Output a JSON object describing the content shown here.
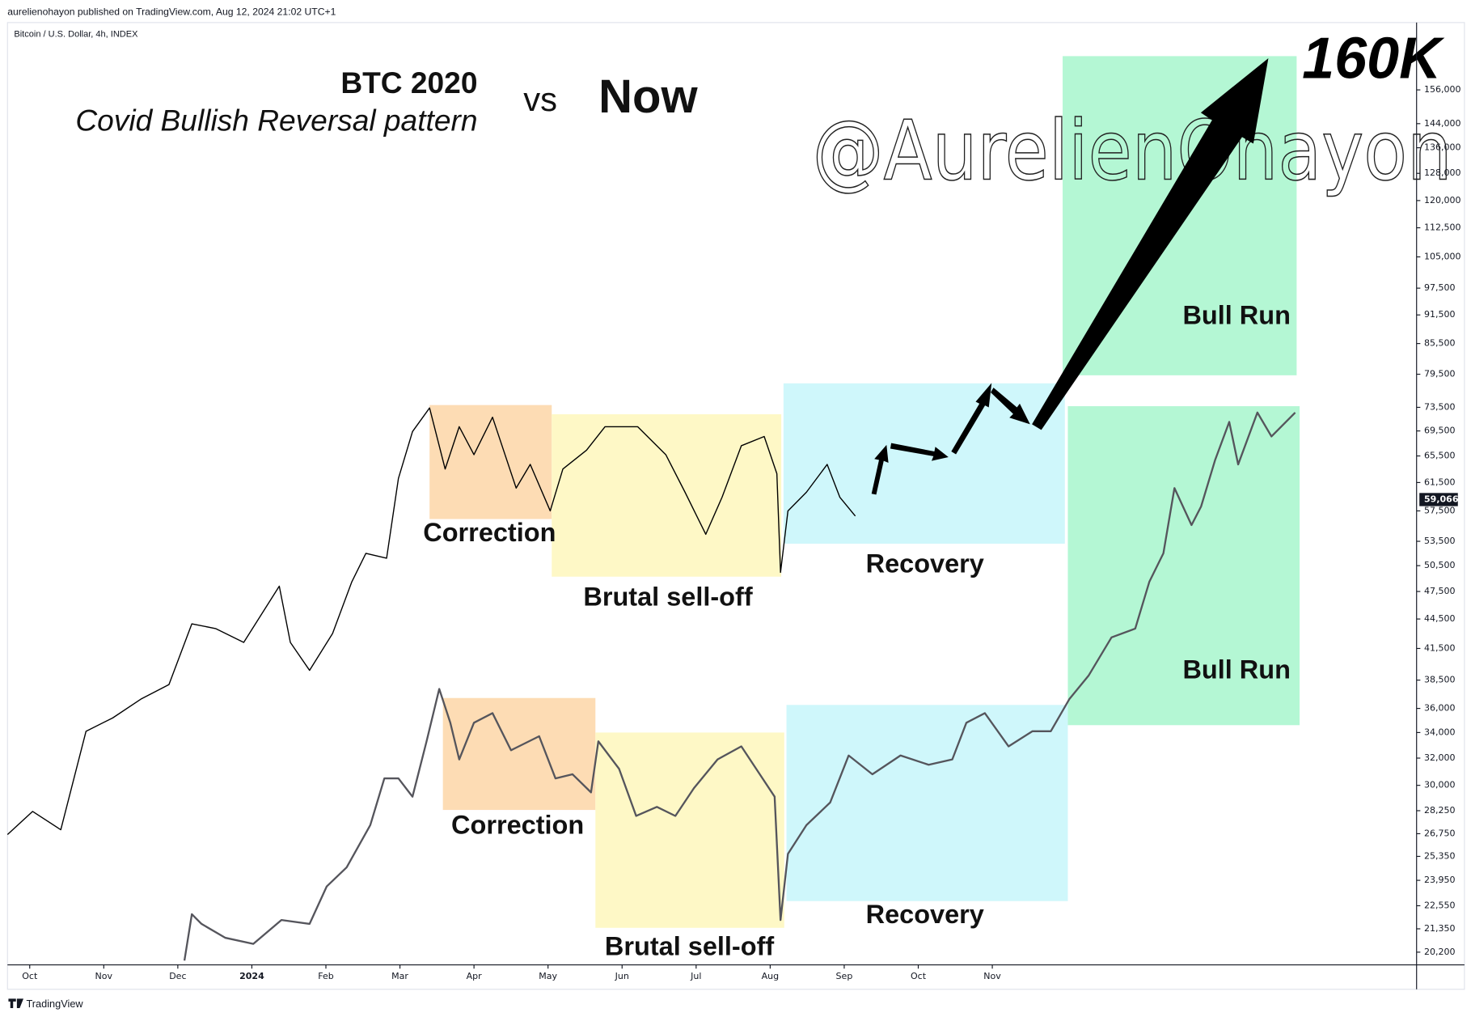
{
  "header": {
    "published": "aurelienohayon published on TradingView.com, Aug 12, 2024 21:02 UTC+1",
    "symbol": "Bitcoin / U.S. Dollar, 4h, INDEX"
  },
  "footer": {
    "brand": "TradingView"
  },
  "chart_data": {
    "type": "line",
    "title": "BTC 2020",
    "subtitle": "Covid Bullish Reversal pattern",
    "annotations": [
      "vs",
      "Now",
      "160K",
      "@AurelienOhayon"
    ],
    "log_y": true,
    "grid": false,
    "xlim": [
      -0.3,
      18.73
    ],
    "ylim": [
      19600,
      183000
    ],
    "xticks": [
      {
        "value": 0,
        "label": "Oct"
      },
      {
        "value": 1,
        "label": "Nov"
      },
      {
        "value": 2,
        "label": "Dec"
      },
      {
        "value": 3,
        "label": "2024"
      },
      {
        "value": 4,
        "label": "Feb"
      },
      {
        "value": 5,
        "label": "Mar"
      },
      {
        "value": 6,
        "label": "Apr"
      },
      {
        "value": 7,
        "label": "May"
      },
      {
        "value": 8,
        "label": "Jun"
      },
      {
        "value": 9,
        "label": "Jul"
      },
      {
        "value": 10,
        "label": "Aug"
      },
      {
        "value": 11,
        "label": "Sep"
      },
      {
        "value": 12,
        "label": "Oct"
      },
      {
        "value": 13,
        "label": "Nov"
      }
    ],
    "yticks": [
      {
        "value": 20200,
        "label": "20,200"
      },
      {
        "value": 21350,
        "label": "21,350"
      },
      {
        "value": 22550,
        "label": "22,550"
      },
      {
        "value": 23950,
        "label": "23,950"
      },
      {
        "value": 25350,
        "label": "25,350"
      },
      {
        "value": 26750,
        "label": "26,750"
      },
      {
        "value": 28250,
        "label": "28,250"
      },
      {
        "value": 30000,
        "label": "30,000"
      },
      {
        "value": 32000,
        "label": "32,000"
      },
      {
        "value": 34000,
        "label": "34,000"
      },
      {
        "value": 36000,
        "label": "36,000"
      },
      {
        "value": 38500,
        "label": "38,500"
      },
      {
        "value": 41500,
        "label": "41,500"
      },
      {
        "value": 44500,
        "label": "44,500"
      },
      {
        "value": 47500,
        "label": "47,500"
      },
      {
        "value": 50500,
        "label": "50,500"
      },
      {
        "value": 53500,
        "label": "53,500"
      },
      {
        "value": 57500,
        "label": "57,500"
      },
      {
        "value": 61500,
        "label": "61,500"
      },
      {
        "value": 65500,
        "label": "65,500"
      },
      {
        "value": 69500,
        "label": "69,500"
      },
      {
        "value": 73500,
        "label": "73,500"
      },
      {
        "value": 79500,
        "label": "79,500"
      },
      {
        "value": 85500,
        "label": "85,500"
      },
      {
        "value": 91500,
        "label": "91,500"
      },
      {
        "value": 97500,
        "label": "97,500"
      },
      {
        "value": 105000,
        "label": "105,000"
      },
      {
        "value": 112500,
        "label": "112,500"
      },
      {
        "value": 120000,
        "label": "120,000"
      },
      {
        "value": 128000,
        "label": "128,000"
      },
      {
        "value": 136000,
        "label": "136,000"
      },
      {
        "value": 144000,
        "label": "144,000"
      },
      {
        "value": 156000,
        "label": "156,000"
      }
    ],
    "last_price": {
      "value": 59066,
      "label": "59,066"
    },
    "zones": [
      {
        "label": "Correction",
        "color": "#fddcb4",
        "x": [
          5.4,
          7.05
        ],
        "y": [
          56400,
          73900
        ],
        "label_at": [
          6.21,
          54400
        ]
      },
      {
        "label": "Brutal sell-off",
        "color": "#fef8c6",
        "x": [
          7.05,
          10.15
        ],
        "y": [
          49200,
          72300
        ],
        "label_at": [
          8.62,
          46700
        ]
      },
      {
        "label": "Recovery",
        "color": "#cff7fb",
        "x": [
          10.18,
          13.98
        ],
        "y": [
          53200,
          77800
        ],
        "label_at": [
          12.09,
          50500
        ]
      },
      {
        "label": "Bull Run",
        "color": "#b4f7d4",
        "x": [
          13.95,
          17.11
        ],
        "y": [
          79300,
          169000
        ],
        "label_at": [
          16.3,
          91000
        ]
      },
      {
        "label": "Correction",
        "color": "#fddcb4",
        "x": [
          5.58,
          7.64
        ],
        "y": [
          28300,
          36900
        ],
        "label_at": [
          6.59,
          27200
        ]
      },
      {
        "label": "Brutal sell-off",
        "color": "#fef8c6",
        "x": [
          7.64,
          10.19
        ],
        "y": [
          21400,
          34000
        ],
        "label_at": [
          8.91,
          20400
        ]
      },
      {
        "label": "Recovery",
        "color": "#cff7fb",
        "x": [
          10.22,
          14.02
        ],
        "y": [
          22800,
          36300
        ],
        "label_at": [
          12.09,
          22000
        ]
      },
      {
        "label": "Bull Run",
        "color": "#b4f7d4",
        "x": [
          14.02,
          17.15
        ],
        "y": [
          34600,
          73700
        ],
        "label_at": [
          16.3,
          39300
        ]
      }
    ],
    "series": [
      {
        "color": "#55555c",
        "x": [
          2.09,
          2.19,
          2.32,
          2.64,
          3.02,
          3.4,
          3.78,
          4.01,
          4.28,
          4.6,
          4.79,
          4.98,
          5.17,
          5.36,
          5.53,
          5.68,
          5.8,
          6.0,
          6.25,
          6.5,
          6.88,
          7.1,
          7.33,
          7.58,
          7.68,
          7.96,
          8.19,
          8.47,
          8.72,
          8.97,
          9.29,
          9.61,
          9.86,
          10.06,
          10.14,
          10.24,
          10.49,
          10.81,
          11.06,
          11.38,
          11.76,
          12.14,
          12.46,
          12.65,
          12.9,
          13.22,
          13.54,
          13.79,
          14.04,
          14.3,
          14.61,
          14.93,
          15.12,
          15.31,
          15.46,
          15.69,
          15.82,
          16.01,
          16.2,
          16.32,
          16.58,
          16.77,
          17.09
        ],
        "values": [
          19800,
          22100,
          21600,
          20900,
          20600,
          21800,
          21600,
          23600,
          24700,
          27300,
          30500,
          30500,
          29200,
          33300,
          37700,
          34800,
          31900,
          34800,
          35600,
          32600,
          33700,
          30500,
          30800,
          29500,
          33300,
          31200,
          27900,
          28500,
          27900,
          29800,
          31900,
          32900,
          30800,
          29200,
          21800,
          25500,
          27300,
          28800,
          32200,
          30800,
          32200,
          31500,
          31900,
          34800,
          35600,
          32900,
          34100,
          34100,
          36800,
          38900,
          42600,
          43500,
          48600,
          52000,
          60700,
          55600,
          58100,
          64900,
          71000,
          64200,
          72600,
          68600,
          72600
        ]
      },
      {
        "color": "#000000",
        "x": [
          -0.3,
          0.04,
          0.42,
          0.76,
          1.12,
          1.5,
          1.88,
          2.19,
          2.51,
          2.89,
          3.37,
          3.52,
          3.78,
          4.09,
          4.35,
          4.54,
          4.82,
          4.98,
          5.17,
          5.4,
          5.61,
          5.8,
          6.0,
          6.25,
          6.57,
          6.76,
          7.03,
          7.2,
          7.52,
          7.77,
          8.21,
          8.59,
          8.85,
          9.13,
          9.35,
          9.61,
          9.92,
          10.09,
          10.14,
          10.24,
          10.49,
          10.77,
          10.94,
          11.15
        ],
        "values": [
          26700,
          28200,
          27000,
          34100,
          35200,
          36800,
          38100,
          44000,
          43500,
          42100,
          48100,
          42100,
          39400,
          43000,
          48600,
          52000,
          51400,
          62100,
          69400,
          73400,
          63500,
          70200,
          65700,
          71800,
          60700,
          64200,
          57500,
          63500,
          66400,
          70200,
          70200,
          65700,
          60100,
          54400,
          59400,
          67100,
          68600,
          62800,
          49700,
          57500,
          60100,
          64200,
          59400,
          56800
        ]
      }
    ]
  }
}
